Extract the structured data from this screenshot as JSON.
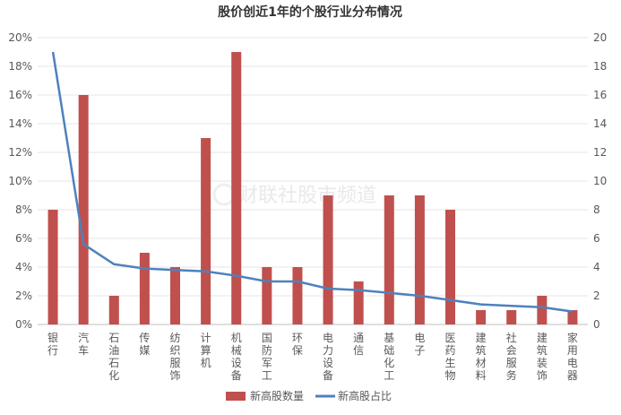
{
  "chart_data": {
    "type": "bar",
    "title": "股价创近1年的个股行业分布情况",
    "categories": [
      "银行",
      "汽车",
      "石油石化",
      "传媒",
      "纺织服饰",
      "计算机",
      "机械设备",
      "国防军工",
      "环保",
      "电力设备",
      "通信",
      "基础化工",
      "电子",
      "医药生物",
      "建筑材料",
      "社会服务",
      "建筑装饰",
      "家用电器"
    ],
    "series": [
      {
        "name": "新高股数量",
        "type": "bar",
        "axis": "right",
        "color": "#c0504d",
        "values": [
          8,
          16,
          2,
          5,
          4,
          13,
          19,
          4,
          4,
          9,
          3,
          9,
          9,
          8,
          1,
          1,
          2,
          1
        ]
      },
      {
        "name": "新高股占比",
        "type": "line",
        "axis": "left",
        "color": "#4f81bd",
        "values": [
          19.0,
          5.6,
          4.2,
          3.9,
          3.8,
          3.7,
          3.4,
          3.0,
          3.0,
          2.5,
          2.4,
          2.2,
          2.0,
          1.7,
          1.4,
          1.3,
          1.2,
          0.9
        ]
      }
    ],
    "y_left": {
      "min": 0,
      "max": 20,
      "step": 2,
      "ticks": [
        "0%",
        "2%",
        "4%",
        "6%",
        "8%",
        "10%",
        "12%",
        "14%",
        "16%",
        "18%",
        "20%"
      ]
    },
    "y_right": {
      "min": 0,
      "max": 20,
      "step": 2,
      "ticks": [
        "0",
        "2",
        "4",
        "6",
        "8",
        "10",
        "12",
        "14",
        "16",
        "18",
        "20"
      ]
    },
    "grid": true,
    "legend_position": "bottom"
  },
  "watermark": "财联社股市频道"
}
